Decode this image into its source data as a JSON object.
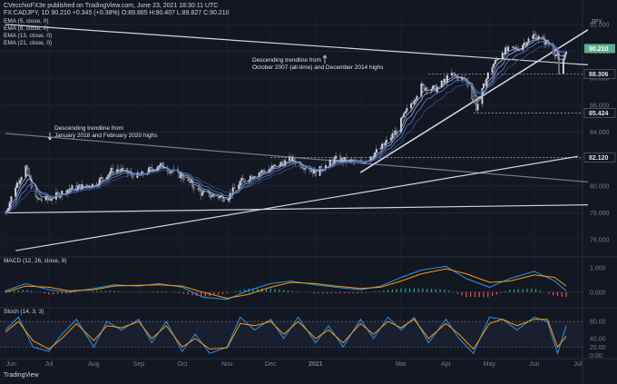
{
  "header": {
    "line1": "CVecchioFX3e published on TradingView.com, June 23, 2021 18:30:11 UTC",
    "line2": "FX:CADJPY, 1D  90.210  +0.345 (+0.38%)  O:89.865  H:90.407  L:89.827  C:90.210"
  },
  "ema_legend": [
    "EMA (5, close, 0)",
    "EMA (8, close, 0)",
    "EMA (13, close, 0)",
    "EMA (21, close, 0)"
  ],
  "currency_label": "JPY",
  "annotations": {
    "trend_2007": [
      "Descending trendline from",
      "October 2007 (all-time) and December 2014 highs"
    ],
    "trend_2018": [
      "Descending trendline from",
      "January 2018 and February 2020 highs"
    ]
  },
  "macd_label": "MACD (12, 26, close, 9)",
  "stoch_label": "Stoch (14, 3, 3)",
  "watermark": "TradingView",
  "chart_data": [
    {
      "type": "candlestick",
      "title": "FX:CADJPY, 1D",
      "price_axis": {
        "ticks": [
          "76.000",
          "78.000",
          "80.000",
          "82.000",
          "84.000",
          "86.000",
          "88.000",
          "90.000",
          "92.000"
        ],
        "ylim": [
          74.8,
          92.6
        ]
      },
      "last_price": "90.210",
      "price_levels": [
        "88.306",
        "85.424",
        "82.120"
      ],
      "x_ticks": [
        "Jun",
        "Jul",
        "Aug",
        "Sep",
        "Oct",
        "Nov",
        "Dec",
        "2021",
        "Mar",
        "Apr",
        "May",
        "Jun",
        "Jul"
      ],
      "close_path": {
        "dates": [
          "2020-06-01",
          "2020-06-08",
          "2020-06-15",
          "2020-06-22",
          "2020-07-01",
          "2020-07-15",
          "2020-08-01",
          "2020-08-15",
          "2020-09-01",
          "2020-09-15",
          "2020-10-01",
          "2020-10-15",
          "2020-11-01",
          "2020-11-10",
          "2020-11-20",
          "2020-12-01",
          "2020-12-15",
          "2021-01-01",
          "2021-01-15",
          "2021-02-01",
          "2021-02-15",
          "2021-02-25",
          "2021-03-05",
          "2021-03-15",
          "2021-03-25",
          "2021-04-05",
          "2021-04-15",
          "2021-04-22",
          "2021-05-01",
          "2021-05-10",
          "2021-05-20",
          "2021-06-01",
          "2021-06-10",
          "2021-06-17",
          "2021-06-18",
          "2021-06-23"
        ],
        "values": [
          78.0,
          80.0,
          81.4,
          79.0,
          79.0,
          79.8,
          80.1,
          81.3,
          80.7,
          81.6,
          80.7,
          79.4,
          79.1,
          80.3,
          80.9,
          81.3,
          82.0,
          81.0,
          82.0,
          81.7,
          82.8,
          84.0,
          85.6,
          87.4,
          87.2,
          88.3,
          87.8,
          85.8,
          88.6,
          90.0,
          90.2,
          91.2,
          90.6,
          89.6,
          88.2,
          90.21
        ]
      },
      "ema_periods": [
        5,
        8,
        13,
        21
      ],
      "trendlines": [
        {
          "name": "Descending trendline from October 2007 (all-time) and December 2014 highs",
          "from": [
            "2020-06-01",
            92.0
          ],
          "to": [
            "2021-07-08",
            89.0
          ]
        },
        {
          "name": "Descending trendline from January 2018 and February 2020 highs",
          "from": [
            "2020-06-01",
            83.9
          ],
          "to": [
            "2021-07-08",
            80.3
          ]
        },
        {
          "name": "Horizontal support",
          "from": [
            "2020-06-01",
            78.0
          ],
          "to": [
            "2021-07-08",
            78.6
          ]
        },
        {
          "name": "Ascending trendline (long-term)",
          "from": [
            "2020-06-08",
            75.2
          ],
          "to": [
            "2021-07-01",
            82.2
          ]
        },
        {
          "name": "Ascending trendline (2021)",
          "from": [
            "2021-02-01",
            81.0
          ],
          "to": [
            "2021-07-08",
            91.6
          ]
        }
      ]
    },
    {
      "type": "line",
      "title": "MACD (12, 26, close, 9)",
      "axis_ticks": [
        "1.000",
        "0.000"
      ],
      "ylim": [
        -0.6,
        1.4
      ],
      "series": [
        {
          "name": "MACD",
          "color": "#2196f3",
          "dates": [
            "2020-06-01",
            "2020-06-15",
            "2020-07-01",
            "2020-07-15",
            "2020-08-01",
            "2020-08-15",
            "2020-09-01",
            "2020-09-15",
            "2020-10-01",
            "2020-10-15",
            "2020-11-01",
            "2020-11-15",
            "2020-12-01",
            "2020-12-15",
            "2021-01-01",
            "2021-01-15",
            "2021-02-01",
            "2021-02-15",
            "2021-03-01",
            "2021-03-15",
            "2021-04-01",
            "2021-04-15",
            "2021-05-01",
            "2021-05-15",
            "2021-06-01",
            "2021-06-15",
            "2021-06-23"
          ],
          "values": [
            0.05,
            0.35,
            0.1,
            0.0,
            0.15,
            0.3,
            0.25,
            0.35,
            0.2,
            -0.2,
            -0.3,
            0.05,
            0.35,
            0.45,
            0.3,
            0.2,
            0.1,
            0.25,
            0.6,
            0.9,
            1.05,
            0.55,
            0.2,
            0.55,
            0.85,
            0.45,
            0.05
          ]
        },
        {
          "name": "Signal",
          "color": "#ff9800",
          "dates": [
            "2020-06-01",
            "2020-06-15",
            "2020-07-01",
            "2020-07-15",
            "2020-08-01",
            "2020-08-15",
            "2020-09-01",
            "2020-09-15",
            "2020-10-01",
            "2020-10-15",
            "2020-11-01",
            "2020-11-15",
            "2020-12-01",
            "2020-12-15",
            "2021-01-01",
            "2021-01-15",
            "2021-02-01",
            "2021-02-15",
            "2021-03-01",
            "2021-03-15",
            "2021-04-01",
            "2021-04-15",
            "2021-05-01",
            "2021-05-15",
            "2021-06-01",
            "2021-06-15",
            "2021-06-23"
          ],
          "values": [
            0.0,
            0.25,
            0.2,
            0.05,
            0.1,
            0.25,
            0.28,
            0.3,
            0.25,
            0.0,
            -0.25,
            -0.1,
            0.2,
            0.4,
            0.35,
            0.25,
            0.15,
            0.2,
            0.45,
            0.75,
            0.95,
            0.75,
            0.4,
            0.45,
            0.7,
            0.6,
            0.25
          ]
        }
      ]
    },
    {
      "type": "line",
      "title": "Stoch (14, 3, 3)",
      "axis_ticks": [
        "80.00",
        "40.00",
        "20.00",
        "0.00"
      ],
      "ylim": [
        -5,
        110
      ],
      "series": [
        {
          "name": "%K",
          "color": "#2196f3",
          "dates": [
            "2020-06-01",
            "2020-06-10",
            "2020-06-20",
            "2020-07-01",
            "2020-07-10",
            "2020-07-20",
            "2020-08-01",
            "2020-08-10",
            "2020-08-20",
            "2020-09-01",
            "2020-09-10",
            "2020-09-20",
            "2020-10-01",
            "2020-10-10",
            "2020-10-20",
            "2020-11-01",
            "2020-11-10",
            "2020-11-20",
            "2020-12-01",
            "2020-12-10",
            "2020-12-20",
            "2021-01-01",
            "2021-01-10",
            "2021-01-20",
            "2021-02-01",
            "2021-02-10",
            "2021-02-20",
            "2021-03-01",
            "2021-03-10",
            "2021-03-20",
            "2021-04-01",
            "2021-04-10",
            "2021-04-20",
            "2021-05-01",
            "2021-05-10",
            "2021-05-20",
            "2021-06-01",
            "2021-06-10",
            "2021-06-17",
            "2021-06-23"
          ],
          "values": [
            60,
            90,
            20,
            10,
            50,
            85,
            20,
            80,
            60,
            85,
            30,
            80,
            10,
            50,
            5,
            20,
            90,
            60,
            85,
            40,
            90,
            30,
            70,
            20,
            85,
            40,
            90,
            60,
            90,
            30,
            85,
            40,
            5,
            90,
            85,
            60,
            90,
            80,
            5,
            70
          ]
        },
        {
          "name": "%D",
          "color": "#ff9800",
          "dates": [
            "2020-06-01",
            "2020-06-10",
            "2020-06-20",
            "2020-07-01",
            "2020-07-10",
            "2020-07-20",
            "2020-08-01",
            "2020-08-10",
            "2020-08-20",
            "2020-09-01",
            "2020-09-10",
            "2020-09-20",
            "2020-10-01",
            "2020-10-10",
            "2020-10-20",
            "2020-11-01",
            "2020-11-10",
            "2020-11-20",
            "2020-12-01",
            "2020-12-10",
            "2020-12-20",
            "2021-01-01",
            "2021-01-10",
            "2021-01-20",
            "2021-02-01",
            "2021-02-10",
            "2021-02-20",
            "2021-03-01",
            "2021-03-10",
            "2021-03-20",
            "2021-04-01",
            "2021-04-10",
            "2021-04-20",
            "2021-05-01",
            "2021-05-10",
            "2021-05-20",
            "2021-06-01",
            "2021-06-10",
            "2021-06-17",
            "2021-06-23"
          ],
          "values": [
            55,
            80,
            35,
            15,
            40,
            75,
            35,
            70,
            65,
            80,
            40,
            70,
            20,
            40,
            15,
            18,
            75,
            70,
            80,
            50,
            80,
            40,
            60,
            30,
            75,
            50,
            80,
            65,
            85,
            40,
            75,
            50,
            15,
            75,
            85,
            70,
            85,
            85,
            20,
            45
          ]
        }
      ]
    }
  ]
}
